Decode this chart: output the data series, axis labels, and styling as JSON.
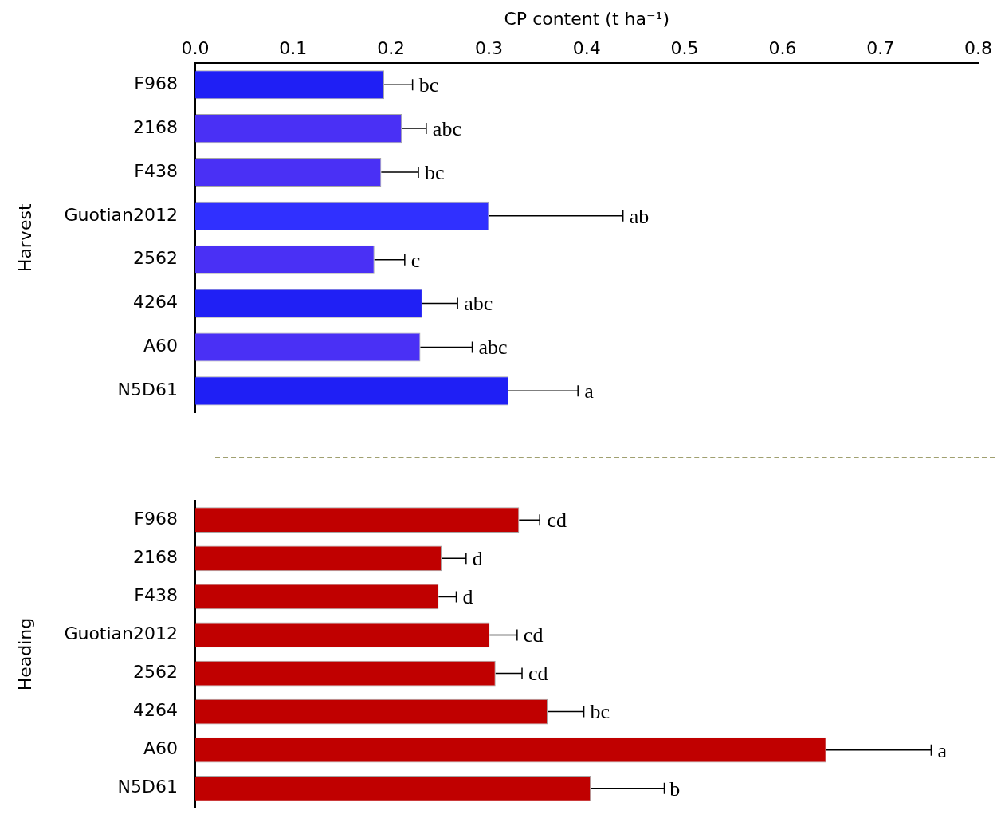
{
  "chart_data": [
    {
      "type": "bar",
      "orientation": "horizontal",
      "xlabel": "CP content (t ha⁻¹)",
      "ylabel": "Harvest",
      "categories": [
        "F968",
        "2168",
        "F438",
        "Guotian2012",
        "2562",
        "4264",
        "A60",
        "N5D61"
      ],
      "values": [
        0.193,
        0.211,
        0.19,
        0.3,
        0.183,
        0.232,
        0.23,
        0.32
      ],
      "errors": [
        0.029,
        0.025,
        0.038,
        0.137,
        0.031,
        0.036,
        0.053,
        0.071
      ],
      "colors": [
        "#1f1ff5",
        "#4a30f5",
        "#4a30f5",
        "#3030ff",
        "#4a30f5",
        "#2020f5",
        "#4a30f5",
        "#1f1ff5"
      ],
      "xlim": [
        0,
        0.8
      ],
      "xticks": [
        {
          "value": 0,
          "label": "0.0"
        },
        0.1,
        0.2,
        0.3,
        0.4,
        0.5,
        0.6,
        0.7,
        0.8
      ],
      "grid": false,
      "legend": false,
      "annotations": [
        {
          "text": "bc",
          "x": 0.222,
          "y": "F968"
        },
        {
          "text": "abc",
          "x": 0.236,
          "y": "2168"
        },
        {
          "text": "bc",
          "x": 0.228,
          "y": "F438"
        },
        {
          "text": "ab",
          "x": 0.437,
          "y": "Guotian2012"
        },
        {
          "text": "c",
          "x": 0.214,
          "y": "2562"
        },
        {
          "text": "abc",
          "x": 0.268,
          "y": "4264"
        },
        {
          "text": "abc",
          "x": 0.283,
          "y": "A60"
        },
        {
          "text": "a",
          "x": 0.391,
          "y": "N5D61"
        }
      ]
    },
    {
      "type": "bar",
      "orientation": "horizontal",
      "ylabel": "Heading",
      "categories": [
        "F968",
        "2168",
        "F438",
        "Guotian2012",
        "2562",
        "4264",
        "A60",
        "N5D61"
      ],
      "values": [
        0.33,
        0.251,
        0.248,
        0.3,
        0.306,
        0.359,
        0.643,
        0.403
      ],
      "errors": [
        0.021,
        0.025,
        0.018,
        0.028,
        0.027,
        0.037,
        0.107,
        0.075
      ],
      "colors": [
        "#c00000",
        "#c00000",
        "#c00000",
        "#c00000",
        "#c00000",
        "#c00000",
        "#c00000",
        "#c00000"
      ],
      "xlim": [
        0,
        0.8
      ],
      "tick_labels": "y",
      "grid": false,
      "legend": false,
      "annotations": [
        {
          "text": "cd",
          "x": 0.352,
          "y": "F968"
        },
        {
          "text": "d",
          "x": 0.276,
          "y": "2168"
        },
        {
          "text": "d",
          "x": 0.266,
          "y": "F438"
        },
        {
          "text": "cd",
          "x": 0.328,
          "y": "Guotian2012"
        },
        {
          "text": "cd",
          "x": 0.333,
          "y": "2562"
        },
        {
          "text": "bc",
          "x": 0.396,
          "y": "4264"
        },
        {
          "text": "a",
          "x": 0.75,
          "y": "A60"
        },
        {
          "text": "b",
          "x": 0.477,
          "y": "N5D61"
        }
      ]
    }
  ]
}
